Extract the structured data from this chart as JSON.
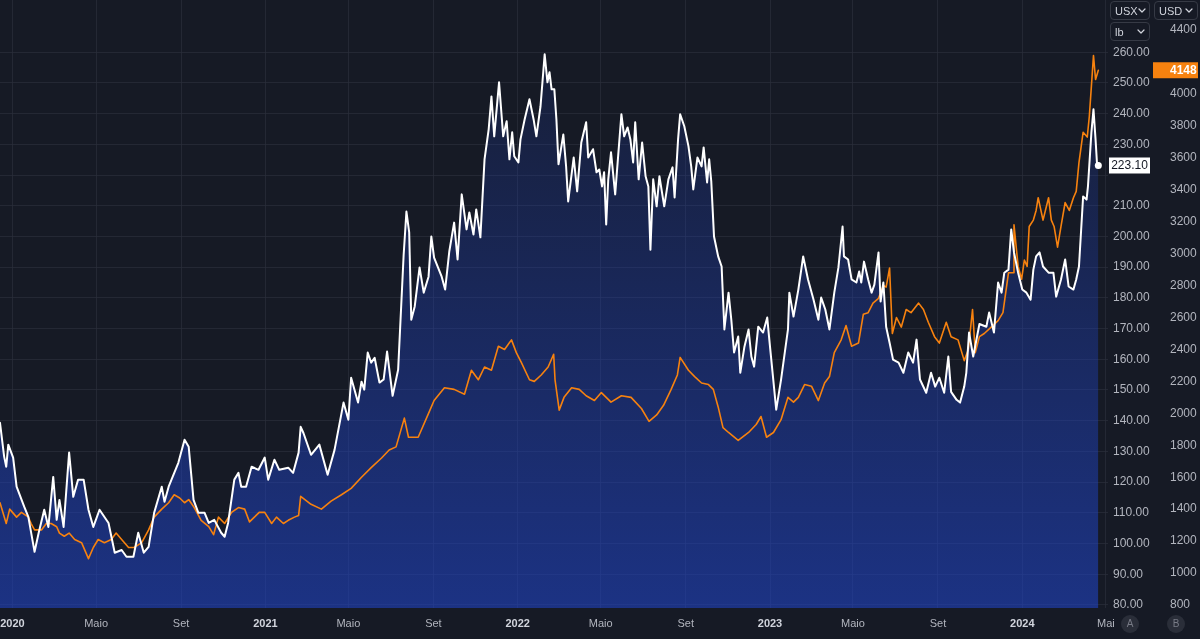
{
  "chart_data": {
    "type": "area",
    "ylabel": "USX",
    "y2label": "USD",
    "annotations": [
      "lb",
      "A",
      "B"
    ],
    "xlim": [
      "2019-12-14",
      "2024-05-04"
    ],
    "xticks": [
      {
        "value": "2020-01-01",
        "label": "2020"
      },
      {
        "value": "2020-05-01",
        "label": "Maio"
      },
      {
        "value": "2020-09-01",
        "label": "Set"
      },
      {
        "value": "2021-01-01",
        "label": "2021"
      },
      {
        "value": "2021-05-01",
        "label": "Maio"
      },
      {
        "value": "2021-09-01",
        "label": "Set"
      },
      {
        "value": "2022-01-01",
        "label": "2022"
      },
      {
        "value": "2022-05-01",
        "label": "Maio"
      },
      {
        "value": "2022-09-01",
        "label": "Set"
      },
      {
        "value": "2023-01-01",
        "label": "2023"
      },
      {
        "value": "2023-05-01",
        "label": "Maio"
      },
      {
        "value": "2023-09-01",
        "label": "Set"
      },
      {
        "value": "2024-01-01",
        "label": "2024"
      },
      {
        "value": "2024-05-01",
        "label": "Mai"
      }
    ],
    "ylim": [
      79,
      277
    ],
    "yticks": [
      {
        "value": 80,
        "label": "80.00"
      },
      {
        "value": 90,
        "label": "90.00"
      },
      {
        "value": 100,
        "label": "100.00"
      },
      {
        "value": 110,
        "label": "110.00"
      },
      {
        "value": 120,
        "label": "120.00"
      },
      {
        "value": 130,
        "label": "130.00"
      },
      {
        "value": 140,
        "label": "140.00"
      },
      {
        "value": 150,
        "label": "150.00"
      },
      {
        "value": 160,
        "label": "160.00"
      },
      {
        "value": 170,
        "label": "170.00"
      },
      {
        "value": 180,
        "label": "180.00"
      },
      {
        "value": 190,
        "label": "190.00"
      },
      {
        "value": 200,
        "label": "200.00"
      },
      {
        "value": 210,
        "label": "210.00"
      },
      {
        "value": 220,
        "label": null
      },
      {
        "value": 230,
        "label": "230.00"
      },
      {
        "value": 240,
        "label": "240.00"
      },
      {
        "value": 250,
        "label": "250.00"
      },
      {
        "value": 260,
        "label": "260.00"
      }
    ],
    "y2lim": [
      781,
      4588
    ],
    "y2ticks": [
      800,
      1000,
      1200,
      1400,
      1600,
      1800,
      2000,
      2200,
      2400,
      2600,
      2800,
      3000,
      3200,
      3400,
      3600,
      3800,
      4000,
      4148,
      4400
    ],
    "grid": true,
    "series": [
      {
        "color": "#ffffff",
        "x": [
          "2019-12-14",
          "2019-12-20",
          "2019-12-23",
          "2019-12-26",
          "2020-01-02",
          "2020-01-07",
          "2020-01-18",
          "2020-01-24",
          "2020-02-02",
          "2020-02-08",
          "2020-02-16",
          "2020-02-22",
          "2020-02-29",
          "2020-03-05",
          "2020-03-09",
          "2020-03-15",
          "2020-03-23",
          "2020-03-29",
          "2020-04-05",
          "2020-04-13",
          "2020-04-20",
          "2020-04-27",
          "2020-05-06",
          "2020-05-19",
          "2020-05-28",
          "2020-06-07",
          "2020-06-14",
          "2020-06-24",
          "2020-07-01",
          "2020-07-09",
          "2020-07-16",
          "2020-07-24",
          "2020-08-04",
          "2020-08-08",
          "2020-08-14",
          "2020-08-28",
          "2020-09-06",
          "2020-09-12",
          "2020-09-19",
          "2020-09-26",
          "2020-10-05",
          "2020-10-11",
          "2020-10-19",
          "2020-10-29",
          "2020-11-03",
          "2020-11-08",
          "2020-11-17",
          "2020-11-23",
          "2020-11-27",
          "2020-12-04",
          "2020-12-12",
          "2020-12-22",
          "2020-12-31",
          "2021-01-05",
          "2021-01-14",
          "2021-01-21",
          "2021-02-03",
          "2021-02-10",
          "2021-02-18",
          "2021-02-21",
          "2021-02-25",
          "2021-03-08",
          "2021-03-20",
          "2021-04-01",
          "2021-04-11",
          "2021-04-24",
          "2021-05-01",
          "2021-05-05",
          "2021-05-15",
          "2021-05-20",
          "2021-05-24",
          "2021-05-29",
          "2021-06-03",
          "2021-06-08",
          "2021-06-15",
          "2021-06-21",
          "2021-06-26",
          "2021-07-04",
          "2021-07-12",
          "2021-07-20",
          "2021-07-24",
          "2021-07-28",
          "2021-07-31",
          "2021-08-05",
          "2021-08-12",
          "2021-08-18",
          "2021-08-25",
          "2021-08-29",
          "2021-09-02",
          "2021-09-13",
          "2021-09-18",
          "2021-09-24",
          "2021-10-01",
          "2021-10-06",
          "2021-10-12",
          "2021-10-19",
          "2021-10-23",
          "2021-10-29",
          "2021-11-02",
          "2021-11-08",
          "2021-11-14",
          "2021-11-20",
          "2021-11-24",
          "2021-11-28",
          "2021-12-05",
          "2021-12-11",
          "2021-12-16",
          "2021-12-20",
          "2021-12-24",
          "2021-12-27",
          "2022-01-02",
          "2022-01-05",
          "2022-01-11",
          "2022-01-18",
          "2022-01-24",
          "2022-01-28",
          "2022-02-03",
          "2022-02-09",
          "2022-02-13",
          "2022-02-16",
          "2022-02-19",
          "2022-02-23",
          "2022-02-26",
          "2022-03-01",
          "2022-03-08",
          "2022-03-12",
          "2022-03-15",
          "2022-03-23",
          "2022-03-28",
          "2022-04-03",
          "2022-04-10",
          "2022-04-13",
          "2022-04-20",
          "2022-04-25",
          "2022-04-29",
          "2022-05-03",
          "2022-05-06",
          "2022-05-09",
          "2022-05-12",
          "2022-05-16",
          "2022-05-22",
          "2022-05-31",
          "2022-06-04",
          "2022-06-09",
          "2022-06-13",
          "2022-06-17",
          "2022-06-20",
          "2022-06-25",
          "2022-06-30",
          "2022-07-05",
          "2022-07-09",
          "2022-07-12",
          "2022-07-16",
          "2022-07-21",
          "2022-07-25",
          "2022-08-01",
          "2022-08-07",
          "2022-08-13",
          "2022-08-16",
          "2022-08-21",
          "2022-08-24",
          "2022-08-30",
          "2022-09-05",
          "2022-09-09",
          "2022-09-12",
          "2022-09-18",
          "2022-09-24",
          "2022-09-27",
          "2022-10-02",
          "2022-10-05",
          "2022-10-08",
          "2022-10-12",
          "2022-10-18",
          "2022-10-23",
          "2022-10-27",
          "2022-11-02",
          "2022-11-06",
          "2022-11-10",
          "2022-11-16",
          "2022-11-19",
          "2022-11-25",
          "2022-12-01",
          "2022-12-05",
          "2022-12-09",
          "2022-12-15",
          "2022-12-22",
          "2022-12-28",
          "2022-12-31",
          "2023-01-10",
          "2023-01-17",
          "2023-01-27",
          "2023-01-29",
          "2023-02-04",
          "2023-02-11",
          "2023-02-18",
          "2023-02-25",
          "2023-03-05",
          "2023-03-12",
          "2023-03-16",
          "2023-03-22",
          "2023-03-28",
          "2023-04-04",
          "2023-04-10",
          "2023-04-16",
          "2023-04-18",
          "2023-04-24",
          "2023-04-29",
          "2023-05-06",
          "2023-05-10",
          "2023-05-13",
          "2023-05-17",
          "2023-05-23",
          "2023-05-28",
          "2023-06-01",
          "2023-06-07",
          "2023-06-10",
          "2023-06-14",
          "2023-06-18",
          "2023-06-23",
          "2023-06-28",
          "2023-07-06",
          "2023-07-13",
          "2023-07-20",
          "2023-07-27",
          "2023-08-01",
          "2023-08-06",
          "2023-08-15",
          "2023-08-22",
          "2023-08-28",
          "2023-09-03",
          "2023-09-10",
          "2023-09-16",
          "2023-09-20",
          "2023-09-28",
          "2023-10-03",
          "2023-10-09",
          "2023-10-12",
          "2023-10-16",
          "2023-10-22",
          "2023-10-31",
          "2023-11-10",
          "2023-11-14",
          "2023-11-21",
          "2023-11-27",
          "2023-12-02",
          "2023-12-06",
          "2023-12-12",
          "2023-12-16",
          "2023-12-20",
          "2023-12-26",
          "2024-01-01",
          "2024-01-07",
          "2024-01-13",
          "2024-01-17",
          "2024-01-21",
          "2024-01-26",
          "2024-01-31",
          "2024-02-08",
          "2024-02-15",
          "2024-02-19",
          "2024-02-26",
          "2024-03-03",
          "2024-03-08",
          "2024-03-15",
          "2024-03-19",
          "2024-03-23",
          "2024-03-29",
          "2024-04-03",
          "2024-04-05",
          "2024-04-10",
          "2024-04-13",
          "2024-04-16",
          "2024-04-18",
          "2024-04-20"
        ],
        "values": [
          139.3,
          128.3,
          125.0,
          132.2,
          128.0,
          118.5,
          112.0,
          108.7,
          97.3,
          103.5,
          111.0,
          105.4,
          121.7,
          107.7,
          114.2,
          105.4,
          129.6,
          115.2,
          120.8,
          120.8,
          111.0,
          105.4,
          111.0,
          106.7,
          97.0,
          97.9,
          95.7,
          95.7,
          103.5,
          97.0,
          98.9,
          110.0,
          118.5,
          113.6,
          118.5,
          126.3,
          133.8,
          131.5,
          114.2,
          110.0,
          110.0,
          106.7,
          107.7,
          103.5,
          102.2,
          106.7,
          120.8,
          123.0,
          118.5,
          118.5,
          125.0,
          124.0,
          128.0,
          120.8,
          127.3,
          124.0,
          124.7,
          123.0,
          129.6,
          138.0,
          136.0,
          128.9,
          132.2,
          122.4,
          130.5,
          145.9,
          140.3,
          154.0,
          145.9,
          152.7,
          150.1,
          162.2,
          158.9,
          160.5,
          152.4,
          153.4,
          162.5,
          148.1,
          156.6,
          194.1,
          208.1,
          201.3,
          172.9,
          177.2,
          189.9,
          181.7,
          186.9,
          200.0,
          193.1,
          186.9,
          182.7,
          195.1,
          204.5,
          192.5,
          213.7,
          202.3,
          207.8,
          200.6,
          208.8,
          199.7,
          225.1,
          234.9,
          245.6,
          232.6,
          250.2,
          232.6,
          237.5,
          225.1,
          233.9,
          226.1,
          224.1,
          231.6,
          238.1,
          244.7,
          238.1,
          232.6,
          242.4,
          259.3,
          250.2,
          253.5,
          247.9,
          247.9,
          238.1,
          223.5,
          233.2,
          222.8,
          211.4,
          225.7,
          214.7,
          230.6,
          237.2,
          225.7,
          228.4,
          220.9,
          221.8,
          216.3,
          220.9,
          203.9,
          218.6,
          227.4,
          213.7,
          239.8,
          232.6,
          235.5,
          231.6,
          224.1,
          237.2,
          218.6,
          230.6,
          219.6,
          216.3,
          195.7,
          218.6,
          209.8,
          219.6,
          209.8,
          218.6,
          222.5,
          212.7,
          231.6,
          239.8,
          235.9,
          229.4,
          222.8,
          215.3,
          225.7,
          222.8,
          229.0,
          217.6,
          225.1,
          218.0,
          200.0,
          193.5,
          190.2,
          169.7,
          181.7,
          172.9,
          162.2,
          167.4,
          155.6,
          164.1,
          169.7,
          160.9,
          157.6,
          170.6,
          168.7,
          173.6,
          166.4,
          143.6,
          153.4,
          169.7,
          181.7,
          173.9,
          182.7,
          193.5,
          186.0,
          179.4,
          172.9,
          180.1,
          176.2,
          169.7,
          181.7,
          189.9,
          203.2,
          193.5,
          192.5,
          186.0,
          185.0,
          188.6,
          185.0,
          191.8,
          186.0,
          181.7,
          184.3,
          194.8,
          178.8,
          185.0,
          170.6,
          165.4,
          159.9,
          158.9,
          155.6,
          162.2,
          158.9,
          166.4,
          153.4,
          149.1,
          155.6,
          151.1,
          154.0,
          149.1,
          160.9,
          149.4,
          146.8,
          145.9,
          151.1,
          155.6,
          168.7,
          160.9,
          171.5,
          170.6,
          175.2,
          168.7,
          185.0,
          181.7,
          188.2,
          189.2,
          202.3,
          194.8,
          188.2,
          182.7,
          181.7,
          179.4,
          189.2,
          193.5,
          194.8,
          190.2,
          188.2,
          188.2,
          180.4,
          186.0,
          192.5,
          183.7,
          182.7,
          186.0,
          190.2,
          213.0,
          212.0,
          216.3,
          233.9,
          241.4,
          231.6,
          224.1,
          223.1
        ],
        "value_labels": [
          null,
          null,
          null,
          null,
          null,
          null,
          null,
          null,
          null,
          null,
          null,
          null,
          null,
          null,
          null,
          null,
          null,
          null,
          null,
          null,
          null,
          null,
          null,
          null,
          null,
          null,
          null,
          null,
          null,
          null,
          null,
          null,
          null,
          null,
          null,
          null,
          null,
          null,
          null,
          null,
          null,
          null,
          null,
          null,
          null,
          null,
          null,
          null,
          null,
          null,
          null,
          null,
          null,
          null,
          null,
          null,
          null,
          null,
          null,
          null,
          null,
          null,
          null,
          null,
          null,
          null,
          null,
          null,
          null,
          null,
          null,
          null,
          null,
          null,
          null,
          null,
          null,
          null,
          null,
          null,
          null,
          null,
          null,
          null,
          null,
          null,
          null,
          null,
          null,
          null,
          null,
          null,
          null,
          null,
          null,
          null,
          null,
          null,
          null,
          null,
          null,
          null,
          null,
          null,
          null,
          null,
          null,
          null,
          null,
          null,
          null,
          null,
          null,
          null,
          null,
          null,
          null,
          null,
          null,
          null,
          null,
          null,
          null,
          null,
          null,
          null,
          null,
          null,
          null,
          null,
          null,
          null,
          null,
          null,
          null,
          null,
          null,
          null,
          null,
          null,
          null,
          null,
          null,
          null,
          null,
          null,
          null,
          null,
          null,
          null,
          null,
          null,
          null,
          null,
          null,
          null,
          null,
          null,
          null,
          null,
          null,
          null,
          null,
          null,
          null,
          null,
          null,
          null,
          null,
          null,
          null,
          null,
          null,
          null,
          null,
          null,
          null,
          null,
          null,
          null,
          null,
          null,
          null,
          null,
          null,
          null,
          null,
          null,
          null,
          null,
          null,
          null,
          null,
          null,
          null,
          null,
          null,
          null,
          null,
          null,
          null,
          null,
          null,
          null,
          null,
          null,
          null,
          null,
          null,
          null,
          null,
          null,
          null,
          null,
          null,
          null,
          null,
          null,
          null,
          null,
          null,
          null,
          null,
          null,
          null,
          null,
          null,
          null,
          null,
          null,
          null,
          null,
          null,
          null,
          null,
          null,
          null,
          null,
          null,
          null,
          null,
          null,
          null,
          null,
          null,
          null,
          null,
          null,
          null,
          null,
          null,
          null,
          null,
          null,
          null,
          null,
          null,
          null,
          null,
          null,
          null,
          null,
          null,
          null,
          null,
          null,
          null,
          null,
          null,
          null,
          null,
          null,
          null,
          "223.10"
        ]
      },
      {
        "type": "line",
        "color": "#f7820f",
        "axis": "y2",
        "x": [
          "2019-12-14",
          "2019-12-23",
          "2019-12-28",
          "2020-01-07",
          "2020-01-14",
          "2020-01-24",
          "2020-01-28",
          "2020-02-02",
          "2020-02-12",
          "2020-02-19",
          "2020-02-26",
          "2020-03-05",
          "2020-03-09",
          "2020-03-16",
          "2020-03-23",
          "2020-03-31",
          "2020-04-10",
          "2020-04-20",
          "2020-04-27",
          "2020-05-04",
          "2020-05-13",
          "2020-05-23",
          "2020-05-30",
          "2020-06-07",
          "2020-06-17",
          "2020-06-25",
          "2020-07-06",
          "2020-07-16",
          "2020-07-24",
          "2020-08-04",
          "2020-08-14",
          "2020-08-22",
          "2020-08-30",
          "2020-09-06",
          "2020-09-12",
          "2020-09-20",
          "2020-09-30",
          "2020-10-11",
          "2020-10-18",
          "2020-10-25",
          "2020-11-03",
          "2020-11-13",
          "2020-11-23",
          "2020-12-02",
          "2020-12-09",
          "2020-12-16",
          "2020-12-23",
          "2020-12-31",
          "2021-01-10",
          "2021-01-17",
          "2021-01-27",
          "2021-02-03",
          "2021-02-12",
          "2021-02-18",
          "2021-02-21",
          "2021-03-08",
          "2021-03-23",
          "2021-04-06",
          "2021-04-21",
          "2021-05-05",
          "2021-05-20",
          "2021-06-03",
          "2021-06-18",
          "2021-06-29",
          "2021-07-09",
          "2021-07-21",
          "2021-07-27",
          "2021-08-10",
          "2021-08-25",
          "2021-09-02",
          "2021-09-17",
          "2021-10-01",
          "2021-10-16",
          "2021-10-26",
          "2021-11-05",
          "2021-11-14",
          "2021-11-24",
          "2021-12-04",
          "2021-12-13",
          "2021-12-23",
          "2021-12-30",
          "2022-01-06",
          "2022-01-18",
          "2022-01-25",
          "2022-02-04",
          "2022-02-14",
          "2022-02-22",
          "2022-02-24",
          "2022-03-02",
          "2022-03-09",
          "2022-03-20",
          "2022-03-31",
          "2022-04-10",
          "2022-04-22",
          "2022-05-02",
          "2022-05-16",
          "2022-05-31",
          "2022-06-14",
          "2022-06-29",
          "2022-07-10",
          "2022-07-21",
          "2022-07-31",
          "2022-08-11",
          "2022-08-20",
          "2022-08-24",
          "2022-09-05",
          "2022-09-14",
          "2022-09-24",
          "2022-10-04",
          "2022-10-11",
          "2022-10-18",
          "2022-10-25",
          "2022-11-02",
          "2022-11-16",
          "2022-12-01",
          "2022-12-12",
          "2022-12-19",
          "2022-12-27",
          "2023-01-06",
          "2023-01-17",
          "2023-01-27",
          "2023-02-04",
          "2023-02-11",
          "2023-02-20",
          "2023-03-02",
          "2023-03-12",
          "2023-03-21",
          "2023-03-28",
          "2023-04-04",
          "2023-04-14",
          "2023-04-21",
          "2023-04-29",
          "2023-05-09",
          "2023-05-16",
          "2023-05-23",
          "2023-05-30",
          "2023-06-07",
          "2023-06-14",
          "2023-06-18",
          "2023-06-23",
          "2023-06-27",
          "2023-07-03",
          "2023-07-10",
          "2023-07-17",
          "2023-07-24",
          "2023-08-04",
          "2023-08-11",
          "2023-08-18",
          "2023-08-27",
          "2023-09-03",
          "2023-09-13",
          "2023-09-20",
          "2023-09-30",
          "2023-10-09",
          "2023-10-15",
          "2023-10-21",
          "2023-10-25",
          "2023-10-31",
          "2023-11-07",
          "2023-11-17",
          "2023-11-27",
          "2023-12-04",
          "2023-12-12",
          "2023-12-19",
          "2023-12-20",
          "2023-12-26",
          "2023-12-31",
          "2024-01-04",
          "2024-01-08",
          "2024-01-11",
          "2024-01-17",
          "2024-01-21",
          "2024-01-24",
          "2024-01-31",
          "2024-02-08",
          "2024-02-12",
          "2024-02-16",
          "2024-02-21",
          "2024-02-26",
          "2024-03-03",
          "2024-03-09",
          "2024-03-15",
          "2024-03-19",
          "2024-03-23",
          "2024-03-29",
          "2024-04-04",
          "2024-04-07",
          "2024-04-13",
          "2024-04-16",
          "2024-04-20"
        ],
        "values": [
          1440,
          1310,
          1400,
          1350,
          1380,
          1350,
          1310,
          1270,
          1270,
          1310,
          1310,
          1290,
          1250,
          1230,
          1250,
          1210,
          1190,
          1090,
          1160,
          1210,
          1190,
          1210,
          1250,
          1210,
          1160,
          1160,
          1190,
          1270,
          1350,
          1400,
          1440,
          1490,
          1470,
          1440,
          1460,
          1410,
          1330,
          1290,
          1240,
          1350,
          1310,
          1380,
          1410,
          1400,
          1320,
          1350,
          1380,
          1380,
          1310,
          1350,
          1310,
          1330,
          1350,
          1360,
          1480,
          1430,
          1400,
          1450,
          1490,
          1530,
          1600,
          1660,
          1720,
          1770,
          1790,
          1970,
          1850,
          1850,
          2000,
          2080,
          2160,
          2150,
          2120,
          2270,
          2210,
          2290,
          2270,
          2420,
          2400,
          2460,
          2380,
          2320,
          2210,
          2200,
          2240,
          2290,
          2370,
          2210,
          2020,
          2100,
          2160,
          2150,
          2110,
          2080,
          2130,
          2070,
          2110,
          2100,
          2030,
          1950,
          1990,
          2050,
          2150,
          2240,
          2350,
          2270,
          2230,
          2190,
          2180,
          2150,
          2040,
          1910,
          1880,
          1830,
          1880,
          1930,
          1980,
          1850,
          1880,
          1960,
          2100,
          2070,
          2100,
          2180,
          2170,
          2080,
          2190,
          2230,
          2380,
          2460,
          2550,
          2420,
          2440,
          2620,
          2630,
          2690,
          2720,
          2800,
          2790,
          2910,
          2500,
          2600,
          2540,
          2650,
          2630,
          2690,
          2650,
          2570,
          2480,
          2440,
          2570,
          2480,
          2460,
          2330,
          2400,
          2650,
          2380,
          2480,
          2500,
          2540,
          2580,
          2630,
          2880,
          2880,
          3180,
          2920,
          2840,
          2960,
          2920,
          3170,
          3210,
          3270,
          3350,
          3210,
          3350,
          3210,
          3170,
          3040,
          3170,
          3320,
          3270,
          3350,
          3390,
          3570,
          3760,
          3730,
          3860,
          4240,
          4090,
          4148
        ]
      }
    ]
  }
}
